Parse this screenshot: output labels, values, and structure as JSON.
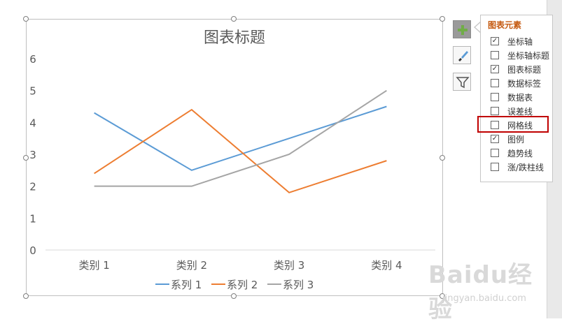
{
  "chart": {
    "title": "图表标题"
  },
  "chart_data": {
    "type": "line",
    "categories": [
      "类别 1",
      "类别 2",
      "类别 3",
      "类别 4"
    ],
    "series": [
      {
        "name": "系列 1",
        "values": [
          4.3,
          2.5,
          3.5,
          4.5
        ],
        "color": "#5b9bd5"
      },
      {
        "name": "系列 2",
        "values": [
          2.4,
          4.4,
          1.8,
          2.8
        ],
        "color": "#ed7d31"
      },
      {
        "name": "系列 3",
        "values": [
          2.0,
          2.0,
          3.0,
          5.0
        ],
        "color": "#a5a5a5"
      }
    ],
    "ylim": [
      0,
      6
    ],
    "yticks": [
      "0",
      "1",
      "2",
      "3",
      "4",
      "5",
      "6"
    ],
    "grid": false,
    "legend": "bottom"
  },
  "side_buttons": [
    {
      "name": "chart-elements-button",
      "icon": "plus-icon"
    },
    {
      "name": "chart-styles-button",
      "icon": "brush-icon"
    },
    {
      "name": "chart-filters-button",
      "icon": "filter-icon"
    }
  ],
  "panel": {
    "title": "图表元素",
    "options": [
      {
        "label": "坐标轴",
        "checked": true
      },
      {
        "label": "坐标轴标题",
        "checked": false
      },
      {
        "label": "图表标题",
        "checked": true
      },
      {
        "label": "数据标签",
        "checked": false
      },
      {
        "label": "数据表",
        "checked": false
      },
      {
        "label": "误差线",
        "checked": false
      },
      {
        "label": "网格线",
        "checked": false
      },
      {
        "label": "图例",
        "checked": true
      },
      {
        "label": "趋势线",
        "checked": false
      },
      {
        "label": "涨/跌柱线",
        "checked": false
      }
    ]
  },
  "watermark": {
    "text": "Baidu经验",
    "url": "jingyan.baidu.com"
  }
}
